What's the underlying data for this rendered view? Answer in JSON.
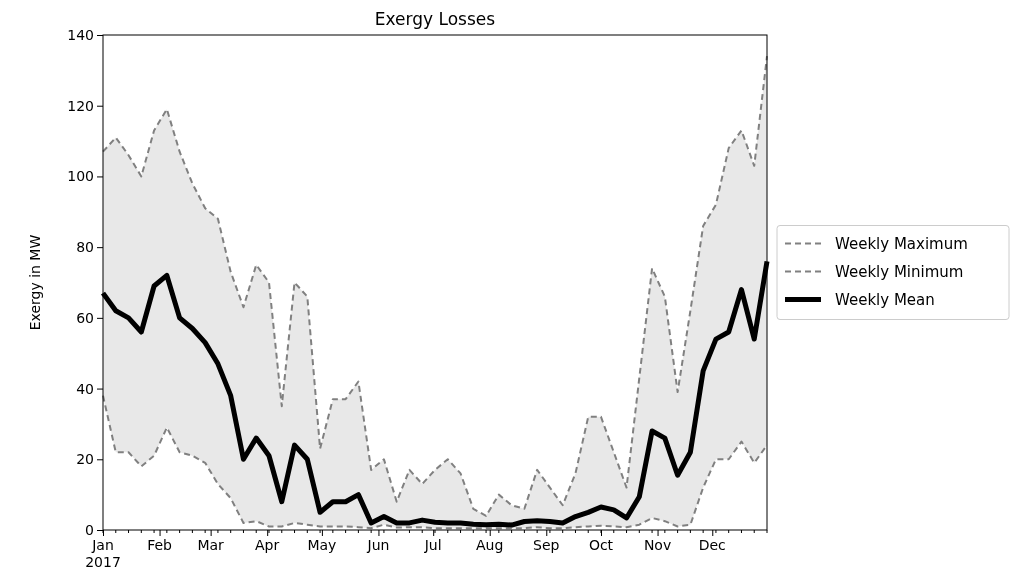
{
  "chart_data": {
    "type": "line",
    "title": "Exergy Losses",
    "ylabel": "Exergy in MW",
    "x": [
      "2017-01-01",
      "2017-01-08",
      "2017-01-15",
      "2017-01-22",
      "2017-01-29",
      "2017-02-05",
      "2017-02-12",
      "2017-02-19",
      "2017-02-26",
      "2017-03-05",
      "2017-03-12",
      "2017-03-19",
      "2017-03-26",
      "2017-04-02",
      "2017-04-09",
      "2017-04-16",
      "2017-04-23",
      "2017-04-30",
      "2017-05-07",
      "2017-05-14",
      "2017-05-21",
      "2017-05-28",
      "2017-06-04",
      "2017-06-11",
      "2017-06-18",
      "2017-06-25",
      "2017-07-02",
      "2017-07-09",
      "2017-07-16",
      "2017-07-23",
      "2017-07-30",
      "2017-08-06",
      "2017-08-13",
      "2017-08-20",
      "2017-08-27",
      "2017-09-03",
      "2017-09-10",
      "2017-09-17",
      "2017-09-24",
      "2017-10-01",
      "2017-10-08",
      "2017-10-15",
      "2017-10-22",
      "2017-10-29",
      "2017-11-05",
      "2017-11-12",
      "2017-11-19",
      "2017-11-26",
      "2017-12-03",
      "2017-12-10",
      "2017-12-17",
      "2017-12-24",
      "2017-12-31"
    ],
    "series": [
      {
        "name": "Weekly Maximum",
        "color": "#808080",
        "line_style": "dashed",
        "values": [
          107,
          111,
          106,
          100,
          113,
          119,
          107,
          98,
          91,
          88,
          73,
          63,
          75,
          70,
          35,
          70,
          66,
          23,
          37,
          37,
          42,
          17,
          20,
          8,
          17,
          13,
          17,
          20,
          16,
          6,
          4,
          10,
          7,
          6,
          17,
          12,
          7,
          16,
          32,
          32,
          22,
          12,
          43,
          74,
          66,
          39,
          62,
          86,
          92,
          108,
          113,
          103,
          134
        ]
      },
      {
        "name": "Weekly Minimum",
        "color": "#808080",
        "line_style": "dashed",
        "values": [
          38,
          22,
          22,
          18,
          21,
          29,
          22,
          21,
          19,
          13,
          9,
          2,
          2.5,
          1,
          1,
          2,
          1.5,
          1,
          1,
          1,
          0.8,
          0.5,
          1.5,
          0.7,
          0.8,
          0.8,
          0.5,
          0.5,
          0.5,
          0.5,
          0.5,
          0.5,
          0.5,
          0.5,
          0.8,
          0.5,
          0.5,
          0.8,
          1,
          1.2,
          1,
          0.8,
          1.5,
          3.4,
          2.5,
          1,
          1.5,
          12,
          20,
          20,
          25,
          19,
          24
        ]
      },
      {
        "name": "Weekly Mean",
        "color": "#000000",
        "line_style": "solid",
        "lower": [
          38,
          22,
          22,
          18,
          21,
          29,
          22,
          21,
          19,
          13,
          9,
          2,
          2.5,
          1,
          1,
          2,
          1.5,
          1,
          1,
          1,
          0.8,
          0.5,
          1.5,
          0.7,
          0.8,
          0.8,
          0.5,
          0.5,
          0.5,
          0.5,
          0.5,
          0.5,
          0.5,
          0.5,
          0.8,
          0.5,
          0.5,
          0.8,
          1,
          1.2,
          1,
          0.8,
          1.5,
          3.4,
          2.5,
          1,
          1.5,
          12,
          20,
          20,
          25,
          19,
          24
        ],
        "upper": [
          107,
          111,
          106,
          100,
          113,
          119,
          107,
          98,
          91,
          88,
          73,
          63,
          75,
          70,
          35,
          70,
          66,
          23,
          37,
          37,
          42,
          17,
          20,
          8,
          17,
          13,
          17,
          20,
          16,
          6,
          4,
          10,
          7,
          6,
          17,
          12,
          7,
          16,
          32,
          32,
          22,
          12,
          43,
          74,
          66,
          39,
          62,
          86,
          92,
          108,
          113,
          103,
          134
        ],
        "values": [
          67,
          62,
          60,
          56,
          69,
          72,
          60,
          57,
          53,
          47,
          38,
          20,
          26,
          21,
          8,
          24,
          20,
          5,
          8,
          8,
          10,
          2,
          3.8,
          2,
          2,
          2.8,
          2.2,
          2,
          2,
          1.6,
          1.5,
          1.6,
          1.4,
          2.4,
          2.6,
          2.4,
          2,
          3.8,
          5,
          6.5,
          5.7,
          3.4,
          9.4,
          28,
          26,
          15.5,
          22,
          45,
          54,
          56,
          68,
          54,
          76
        ]
      }
    ],
    "xlim": [
      "2017-01-01",
      "2017-12-31"
    ],
    "xticks": [
      {
        "value": "2017-01-01",
        "label": "Jan\n2017"
      },
      {
        "value": "2017-02-01",
        "label": "Feb"
      },
      {
        "value": "2017-03-01",
        "label": "Mar"
      },
      {
        "value": "2017-04-01",
        "label": "Apr"
      },
      {
        "value": "2017-05-01",
        "label": "May"
      },
      {
        "value": "2017-06-01",
        "label": "Jun"
      },
      {
        "value": "2017-07-01",
        "label": "Jul"
      },
      {
        "value": "2017-08-01",
        "label": "Aug"
      },
      {
        "value": "2017-09-01",
        "label": "Sep"
      },
      {
        "value": "2017-10-01",
        "label": "Oct"
      },
      {
        "value": "2017-11-01",
        "label": "Nov"
      },
      {
        "value": "2017-12-01",
        "label": "Dec"
      }
    ],
    "ylim": [
      0,
      140
    ],
    "yticks": [
      0,
      20,
      40,
      60,
      80,
      100,
      120,
      140
    ],
    "grid": false,
    "legend": "right"
  }
}
